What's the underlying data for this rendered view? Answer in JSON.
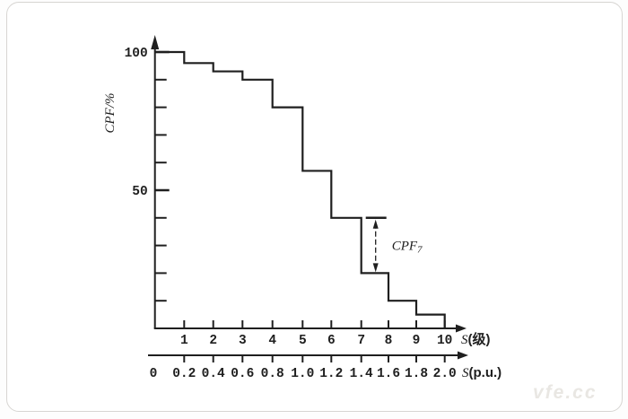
{
  "watermark": {
    "text": "vfe.cc"
  },
  "colors": {
    "ink": "#1f1f1f",
    "frame_border": "#d7d5d2",
    "background": "#ffffff",
    "watermark": "#e9e7e3"
  },
  "chart_data": {
    "type": "line",
    "style": "step",
    "description": "Cumulative probability function (CPF) step curve decreasing from 100% to 0 across 10 severity levels",
    "grid": false,
    "legend": "none",
    "y_axis": {
      "title": "CPF/%",
      "range": [
        0,
        100
      ],
      "tick_step": 10,
      "labeled_ticks": [
        {
          "text": "100",
          "value": 100
        },
        {
          "text": "50",
          "value": 50
        }
      ]
    },
    "x_axis_levels": {
      "title_prefix": "S",
      "title_suffix": "(级)",
      "tick_values": [
        1,
        2,
        3,
        4,
        5,
        6,
        7,
        8,
        9,
        10
      ],
      "tick_labels": [
        "1",
        "2",
        "3",
        "4",
        "5",
        "6",
        "7",
        "8",
        "9",
        "10"
      ]
    },
    "x_axis_pu": {
      "title_prefix": "S",
      "title_suffix": "(p.u.)",
      "tick_labels": [
        "0",
        "0.2",
        "0.4",
        "0.6",
        "0.8",
        "1.0",
        "1.2",
        "1.4",
        "1.6",
        "1.8",
        "2.0"
      ]
    },
    "series": [
      {
        "name": "CPF",
        "interval_upper_level": [
          1,
          2,
          3,
          4,
          5,
          6,
          7,
          8,
          9,
          10
        ],
        "cpf_percent": [
          100,
          96,
          93,
          90,
          80,
          57,
          40,
          20,
          10,
          5
        ],
        "value_after_level_10": 0
      }
    ],
    "annotation": {
      "label": "CPF",
      "subscript": "7",
      "top_value": 40,
      "bottom_value": 20,
      "between_levels": [
        7,
        8
      ]
    }
  }
}
